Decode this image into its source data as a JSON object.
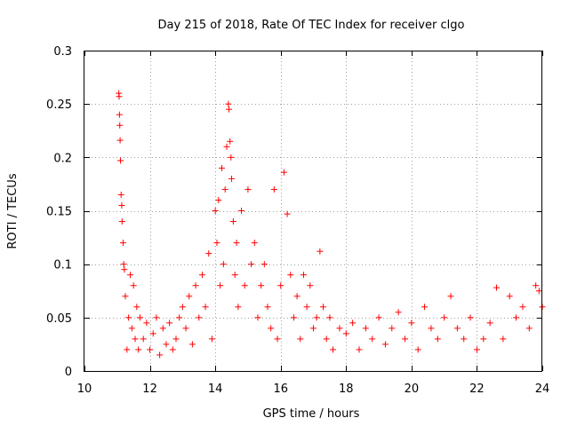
{
  "chart_data": {
    "type": "scatter",
    "title": "Day 215 of 2018, Rate Of TEC Index for receiver clgo",
    "xlabel": "GPS time / hours",
    "ylabel": "ROTI / TECUs",
    "xlim": [
      10,
      24
    ],
    "ylim": [
      0,
      0.3
    ],
    "xticks": [
      10,
      12,
      14,
      16,
      18,
      20,
      22,
      24
    ],
    "xtick_labels": [
      "10",
      "12",
      "14",
      "16",
      "18",
      "20",
      "22",
      "24"
    ],
    "yticks": [
      0,
      0.05,
      0.1,
      0.15,
      0.2,
      0.25,
      0.3
    ],
    "ytick_labels": [
      "0",
      "0.05",
      "0.1",
      "0.15",
      "0.2",
      "0.25",
      "0.3"
    ],
    "grid": true,
    "marker": "+",
    "color": "#ff0000",
    "series": [
      {
        "name": "ROTI",
        "x": [
          11.05,
          11.06,
          11.07,
          11.08,
          11.09,
          11.1,
          11.12,
          11.14,
          11.15,
          11.18,
          11.2,
          11.22,
          11.25,
          11.3,
          11.35,
          11.4,
          11.45,
          11.5,
          11.55,
          11.6,
          11.65,
          11.7,
          11.8,
          11.9,
          12.0,
          12.1,
          12.2,
          12.3,
          12.4,
          12.5,
          12.6,
          12.7,
          12.8,
          12.9,
          13.0,
          13.1,
          13.2,
          13.3,
          13.4,
          13.5,
          13.6,
          13.7,
          13.8,
          13.9,
          14.0,
          14.05,
          14.1,
          14.15,
          14.2,
          14.25,
          14.3,
          14.35,
          14.4,
          14.42,
          14.45,
          14.48,
          14.5,
          14.55,
          14.6,
          14.65,
          14.7,
          14.8,
          14.9,
          15.0,
          15.1,
          15.2,
          15.3,
          15.4,
          15.5,
          15.6,
          15.7,
          15.8,
          15.9,
          16.0,
          16.1,
          16.2,
          16.3,
          16.4,
          16.5,
          16.6,
          16.7,
          16.8,
          16.9,
          17.0,
          17.1,
          17.2,
          17.3,
          17.4,
          17.5,
          17.6,
          17.8,
          18.0,
          18.2,
          18.4,
          18.6,
          18.8,
          19.0,
          19.2,
          19.4,
          19.6,
          19.8,
          20.0,
          20.2,
          20.4,
          20.6,
          20.8,
          21.0,
          21.2,
          21.4,
          21.6,
          21.8,
          22.0,
          22.2,
          22.4,
          22.6,
          22.8,
          23.0,
          23.2,
          23.4,
          23.6,
          23.8,
          23.9,
          24.0
        ],
        "y": [
          0.26,
          0.257,
          0.24,
          0.23,
          0.216,
          0.197,
          0.165,
          0.155,
          0.14,
          0.12,
          0.1,
          0.095,
          0.07,
          0.02,
          0.05,
          0.09,
          0.04,
          0.08,
          0.03,
          0.06,
          0.02,
          0.05,
          0.03,
          0.045,
          0.02,
          0.035,
          0.05,
          0.015,
          0.04,
          0.025,
          0.045,
          0.02,
          0.03,
          0.05,
          0.06,
          0.04,
          0.07,
          0.025,
          0.08,
          0.05,
          0.09,
          0.06,
          0.11,
          0.03,
          0.15,
          0.12,
          0.16,
          0.08,
          0.19,
          0.1,
          0.17,
          0.21,
          0.25,
          0.245,
          0.215,
          0.2,
          0.18,
          0.14,
          0.09,
          0.12,
          0.06,
          0.15,
          0.08,
          0.17,
          0.1,
          0.12,
          0.05,
          0.08,
          0.1,
          0.06,
          0.04,
          0.17,
          0.03,
          0.08,
          0.186,
          0.147,
          0.09,
          0.05,
          0.07,
          0.03,
          0.09,
          0.06,
          0.08,
          0.04,
          0.05,
          0.112,
          0.06,
          0.03,
          0.05,
          0.02,
          0.04,
          0.035,
          0.045,
          0.02,
          0.04,
          0.03,
          0.05,
          0.025,
          0.04,
          0.055,
          0.03,
          0.045,
          0.02,
          0.06,
          0.04,
          0.03,
          0.05,
          0.07,
          0.04,
          0.03,
          0.05,
          0.02,
          0.03,
          0.045,
          0.078,
          0.03,
          0.07,
          0.05,
          0.06,
          0.04,
          0.08,
          0.075,
          0.06
        ]
      }
    ]
  }
}
